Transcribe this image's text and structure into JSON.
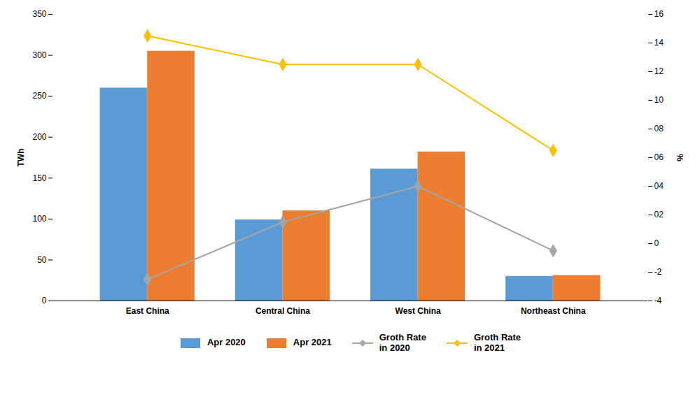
{
  "chart_data": {
    "type": "bar",
    "categories": [
      "East China",
      "Central China",
      "West China",
      "Northeast China"
    ],
    "ylabel": "TWh",
    "y2label": "%",
    "ylim": [
      0,
      350
    ],
    "yticks": [
      0,
      50,
      100,
      150,
      200,
      250,
      300,
      350
    ],
    "y2lim": [
      -4,
      16
    ],
    "y2ticks": [
      -4,
      -2,
      0,
      {
        "value": 2,
        "label": "02"
      },
      {
        "value": 4,
        "label": "04"
      },
      {
        "value": 6,
        "label": "06"
      },
      {
        "value": 8,
        "label": "08"
      },
      10,
      12,
      14,
      16
    ],
    "grid": false,
    "legend": "bottom",
    "series": [
      {
        "name": "Apr 2020",
        "type": "bar",
        "color": "#5B9BD5",
        "values": [
          260,
          99,
          161,
          30
        ]
      },
      {
        "name": "Apr 2021",
        "type": "bar",
        "color": "#ED7D31",
        "values": [
          305,
          110,
          182,
          31
        ]
      },
      {
        "name": "Groth Rate\nin 2020",
        "type": "line",
        "axis": "y2",
        "marker": "diamond",
        "color": "#A5A5A5",
        "values": [
          -2.5,
          1.5,
          4.0,
          -0.5
        ]
      },
      {
        "name": "Groth Rate\nin 2021",
        "type": "line",
        "axis": "y2",
        "marker": "diamond",
        "color": "#FFC000",
        "values": [
          14.5,
          12.5,
          12.5,
          6.5
        ]
      }
    ]
  }
}
